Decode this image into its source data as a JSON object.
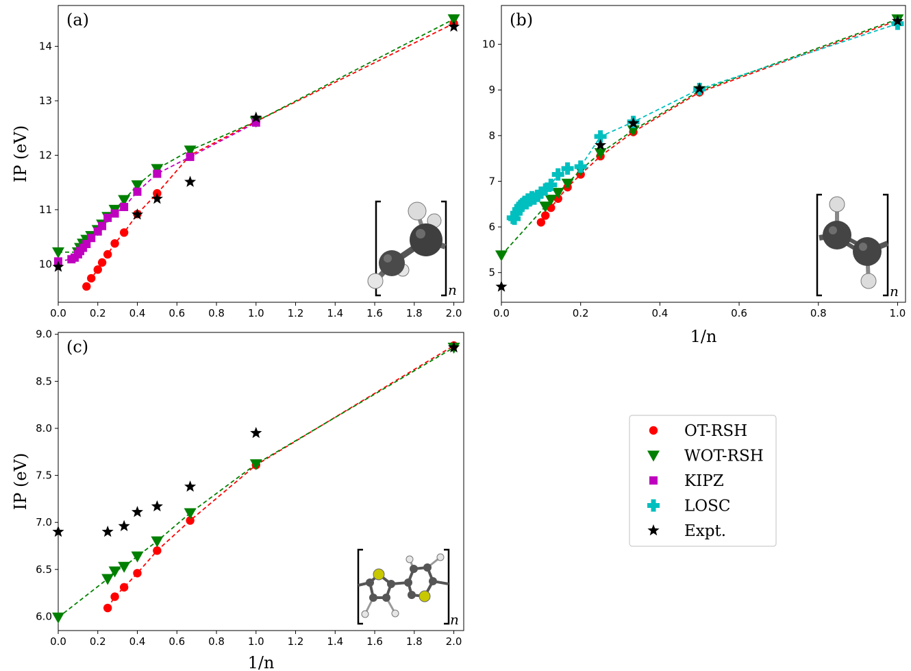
{
  "chart_data": [
    {
      "type": "scatter",
      "panel_label": "(a)",
      "ylabel": "IP (eV)",
      "xlabel": "",
      "xlim": [
        0.0,
        2.05
      ],
      "ylim": [
        9.3,
        14.75
      ],
      "xticks": [
        0.0,
        0.2,
        0.4,
        0.6,
        0.8,
        1.0,
        1.2,
        1.4,
        1.6,
        1.8,
        2.0
      ],
      "xtick_labels": [
        "0.0",
        "0.2",
        "0.4",
        "0.6",
        "0.8",
        "1.0",
        "1.2",
        "1.4",
        "1.6",
        "1.8",
        "2.0"
      ],
      "yticks": [
        10,
        11,
        12,
        13,
        14
      ],
      "ytick_labels": [
        "10",
        "11",
        "12",
        "13",
        "14"
      ],
      "inset_subscript": "n",
      "series": [
        {
          "name": "OT-RSH",
          "marker": "circle",
          "color": "#ff0000",
          "dashed": true,
          "x": [
            0.143,
            0.167,
            0.2,
            0.222,
            0.25,
            0.286,
            0.333,
            0.4,
            0.5,
            0.667,
            1.0,
            2.0
          ],
          "y": [
            9.59,
            9.74,
            9.9,
            10.03,
            10.18,
            10.38,
            10.58,
            10.92,
            11.3,
            12.0,
            12.62,
            14.42
          ]
        },
        {
          "name": "WOT-RSH",
          "marker": "triangle-down",
          "color": "#008000",
          "dashed": true,
          "x": [
            0.0,
            0.1,
            0.111,
            0.125,
            0.143,
            0.167,
            0.2,
            0.222,
            0.25,
            0.286,
            0.333,
            0.4,
            0.5,
            0.667,
            1.0,
            2.0
          ],
          "y": [
            10.22,
            10.22,
            10.3,
            10.38,
            10.45,
            10.52,
            10.63,
            10.73,
            10.87,
            11.0,
            11.18,
            11.45,
            11.75,
            12.09,
            12.62,
            14.5
          ]
        },
        {
          "name": "KIPZ",
          "marker": "square",
          "color": "#bf00bf",
          "dashed": true,
          "x": [
            0.0,
            0.067,
            0.083,
            0.1,
            0.111,
            0.125,
            0.143,
            0.167,
            0.2,
            0.222,
            0.25,
            0.286,
            0.333,
            0.4,
            0.5,
            0.667,
            1.0
          ],
          "y": [
            10.05,
            10.09,
            10.12,
            10.18,
            10.24,
            10.3,
            10.37,
            10.48,
            10.6,
            10.7,
            10.85,
            10.93,
            11.05,
            11.33,
            11.66,
            11.97,
            12.6
          ]
        },
        {
          "name": "Expt.",
          "marker": "star",
          "color": "#000000",
          "dashed": false,
          "x": [
            0.0,
            0.4,
            0.5,
            0.667,
            1.0,
            2.0
          ],
          "y": [
            9.95,
            10.91,
            11.2,
            11.51,
            12.69,
            14.36
          ]
        }
      ]
    },
    {
      "type": "scatter",
      "panel_label": "(b)",
      "ylabel": "",
      "xlabel": "1/n",
      "xlim": [
        0.0,
        1.02
      ],
      "ylim": [
        4.35,
        10.85
      ],
      "xticks": [
        0.0,
        0.2,
        0.4,
        0.6,
        0.8,
        1.0
      ],
      "xtick_labels": [
        "0.0",
        "0.2",
        "0.4",
        "0.6",
        "0.8",
        "1.0"
      ],
      "yticks": [
        5,
        6,
        7,
        8,
        9,
        10
      ],
      "ytick_labels": [
        "5",
        "6",
        "7",
        "8",
        "9",
        "10"
      ],
      "inset_subscript": "n",
      "series": [
        {
          "name": "OT-RSH",
          "marker": "circle",
          "color": "#ff0000",
          "dashed": true,
          "x": [
            0.1,
            0.111,
            0.125,
            0.143,
            0.167,
            0.2,
            0.25,
            0.333,
            0.5,
            1.0
          ],
          "y": [
            6.1,
            6.25,
            6.42,
            6.62,
            6.87,
            7.15,
            7.55,
            8.08,
            8.95,
            10.52
          ]
        },
        {
          "name": "WOT-RSH",
          "marker": "triangle-down",
          "color": "#008000",
          "dashed": true,
          "x": [
            0.0,
            0.111,
            0.125,
            0.143,
            0.167,
            0.2,
            0.25,
            0.333,
            0.5,
            1.0
          ],
          "y": [
            5.38,
            6.45,
            6.6,
            6.75,
            6.95,
            7.25,
            7.62,
            8.12,
            8.98,
            10.55
          ]
        },
        {
          "name": "LOSC",
          "marker": "plus",
          "color": "#00bfbf",
          "dashed": true,
          "x": [
            0.029,
            0.033,
            0.038,
            0.043,
            0.048,
            0.053,
            0.059,
            0.063,
            0.067,
            0.071,
            0.077,
            0.083,
            0.091,
            0.1,
            0.111,
            0.125,
            0.143,
            0.167,
            0.2,
            0.25,
            0.333,
            0.5,
            1.0
          ],
          "y": [
            6.2,
            6.18,
            6.3,
            6.38,
            6.45,
            6.5,
            6.55,
            6.52,
            6.6,
            6.58,
            6.65,
            6.62,
            6.68,
            6.75,
            6.82,
            6.92,
            7.15,
            7.28,
            7.32,
            7.98,
            8.3,
            9.02,
            10.45
          ]
        },
        {
          "name": "Expt.",
          "marker": "star",
          "color": "#000000",
          "dashed": false,
          "x": [
            0.0,
            0.25,
            0.333,
            0.5,
            1.0
          ],
          "y": [
            4.69,
            7.79,
            8.27,
            9.03,
            10.51
          ]
        }
      ]
    },
    {
      "type": "scatter",
      "panel_label": "(c)",
      "ylabel": "IP (eV)",
      "xlabel": "1/n",
      "xlim": [
        0.0,
        2.05
      ],
      "ylim": [
        5.85,
        9.02
      ],
      "xticks": [
        0.0,
        0.2,
        0.4,
        0.6,
        0.8,
        1.0,
        1.2,
        1.4,
        1.6,
        1.8,
        2.0
      ],
      "xtick_labels": [
        "0.0",
        "0.2",
        "0.4",
        "0.6",
        "0.8",
        "1.0",
        "1.2",
        "1.4",
        "1.6",
        "1.8",
        "2.0"
      ],
      "yticks": [
        6.0,
        6.5,
        7.0,
        7.5,
        8.0,
        8.5,
        9.0
      ],
      "ytick_labels": [
        "6.0",
        "6.5",
        "7.0",
        "7.5",
        "8.0",
        "8.5",
        "9.0"
      ],
      "inset_subscript": "n",
      "series": [
        {
          "name": "OT-RSH",
          "marker": "circle",
          "color": "#ff0000",
          "dashed": true,
          "x": [
            0.25,
            0.286,
            0.333,
            0.4,
            0.5,
            0.667,
            1.0,
            2.0
          ],
          "y": [
            6.09,
            6.21,
            6.31,
            6.46,
            6.7,
            7.02,
            7.61,
            8.88
          ]
        },
        {
          "name": "WOT-RSH",
          "marker": "triangle-down",
          "color": "#008000",
          "dashed": true,
          "x": [
            0.0,
            0.25,
            0.286,
            0.333,
            0.4,
            0.5,
            0.667,
            1.0,
            2.0
          ],
          "y": [
            5.99,
            6.4,
            6.48,
            6.53,
            6.64,
            6.8,
            7.1,
            7.62,
            8.86
          ]
        },
        {
          "name": "Expt.",
          "marker": "star",
          "color": "#000000",
          "dashed": false,
          "x": [
            0.0,
            0.25,
            0.333,
            0.4,
            0.5,
            0.667,
            1.0,
            2.0
          ],
          "y": [
            6.9,
            6.9,
            6.96,
            7.11,
            7.17,
            7.38,
            7.95,
            8.86
          ]
        }
      ]
    }
  ],
  "legend": {
    "placement": "lower-right empty quadrant",
    "items": [
      {
        "label": "OT-RSH",
        "marker": "circle",
        "color": "#ff0000"
      },
      {
        "label": "WOT-RSH",
        "marker": "triangle-down",
        "color": "#008000"
      },
      {
        "label": "KIPZ",
        "marker": "square",
        "color": "#bf00bf"
      },
      {
        "label": "LOSC",
        "marker": "plus",
        "color": "#00bfbf"
      },
      {
        "label": "Expt.",
        "marker": "star",
        "color": "#000000"
      }
    ]
  }
}
